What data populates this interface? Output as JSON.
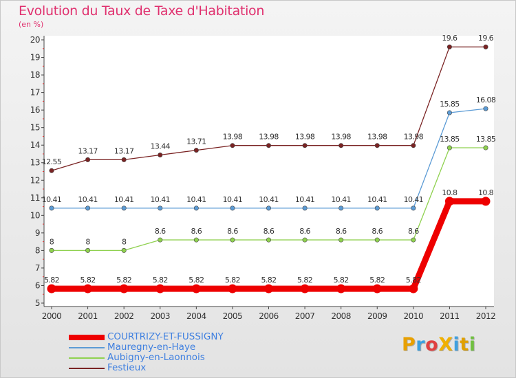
{
  "header": {
    "title": "Evolution du Taux de Taxe d'Habitation",
    "subtitle": "(en %)"
  },
  "logo": {
    "text": "ProXiti",
    "letters": [
      {
        "ch": "P",
        "color": "#e8a000"
      },
      {
        "ch": "r",
        "color": "#3aa0e0"
      },
      {
        "ch": "o",
        "color": "#e04040"
      },
      {
        "ch": "X",
        "color": "#f0b000"
      },
      {
        "ch": "i",
        "color": "#40a0e0"
      },
      {
        "ch": "t",
        "color": "#e0a000"
      },
      {
        "ch": "i",
        "color": "#70c040"
      }
    ]
  },
  "chart_data": {
    "type": "line",
    "title": "Evolution du Taux de Taxe d'Habitation",
    "ylabel": "(en %)",
    "xlabel": "",
    "x": [
      "2000",
      "2001",
      "2002",
      "2003",
      "2004",
      "2005",
      "2006",
      "2007",
      "2008",
      "2009",
      "2010",
      "2011",
      "2012"
    ],
    "ylim": [
      5,
      20
    ],
    "yticks": [
      5,
      6,
      7,
      8,
      9,
      10,
      11,
      12,
      13,
      14,
      15,
      16,
      17,
      18,
      19,
      20
    ],
    "grid": false,
    "legend_position": "bottom-left",
    "series": [
      {
        "name": "COURTRIZY-ET-FUSSIGNY",
        "color": "#ee0000",
        "values": [
          5.82,
          5.82,
          5.82,
          5.82,
          5.82,
          5.82,
          5.82,
          5.82,
          5.82,
          5.82,
          5.82,
          10.8,
          10.8
        ],
        "labels": [
          "5.82",
          "5.82",
          "5.82",
          "5.82",
          "5.82",
          "5.82",
          "5.82",
          "5.82",
          "5.82",
          "5.82",
          "5.82",
          "10.8",
          "10.8"
        ],
        "emphasis": true
      },
      {
        "name": "Mauregny-en-Haye",
        "color": "#5b9bd5",
        "values": [
          10.41,
          10.41,
          10.41,
          10.41,
          10.41,
          10.41,
          10.41,
          10.41,
          10.41,
          10.41,
          10.41,
          15.85,
          16.08
        ],
        "labels": [
          "10.41",
          "10.41",
          "10.41",
          "10.41",
          "10.41",
          "10.41",
          "10.41",
          "10.41",
          "10.41",
          "10.41",
          "10.41",
          "15.85",
          "16.08"
        ]
      },
      {
        "name": "Aubigny-en-Laonnois",
        "color": "#8fd14f",
        "values": [
          8,
          8,
          8,
          8.6,
          8.6,
          8.6,
          8.6,
          8.6,
          8.6,
          8.6,
          8.6,
          13.85,
          13.85
        ],
        "labels": [
          "8",
          "8",
          "8",
          "8.6",
          "8.6",
          "8.6",
          "8.6",
          "8.6",
          "8.6",
          "8.6",
          "8.6",
          "13.85",
          "13.85"
        ]
      },
      {
        "name": "Festieux",
        "color": "#7a2323",
        "values": [
          12.55,
          13.17,
          13.17,
          13.44,
          13.71,
          13.98,
          13.98,
          13.98,
          13.98,
          13.98,
          13.98,
          19.6,
          19.6
        ],
        "labels": [
          "12.55",
          "13.17",
          "13.17",
          "13.44",
          "13.71",
          "13.98",
          "13.98",
          "13.98",
          "13.98",
          "13.98",
          "13.98",
          "19.6",
          "19.6"
        ]
      }
    ]
  }
}
